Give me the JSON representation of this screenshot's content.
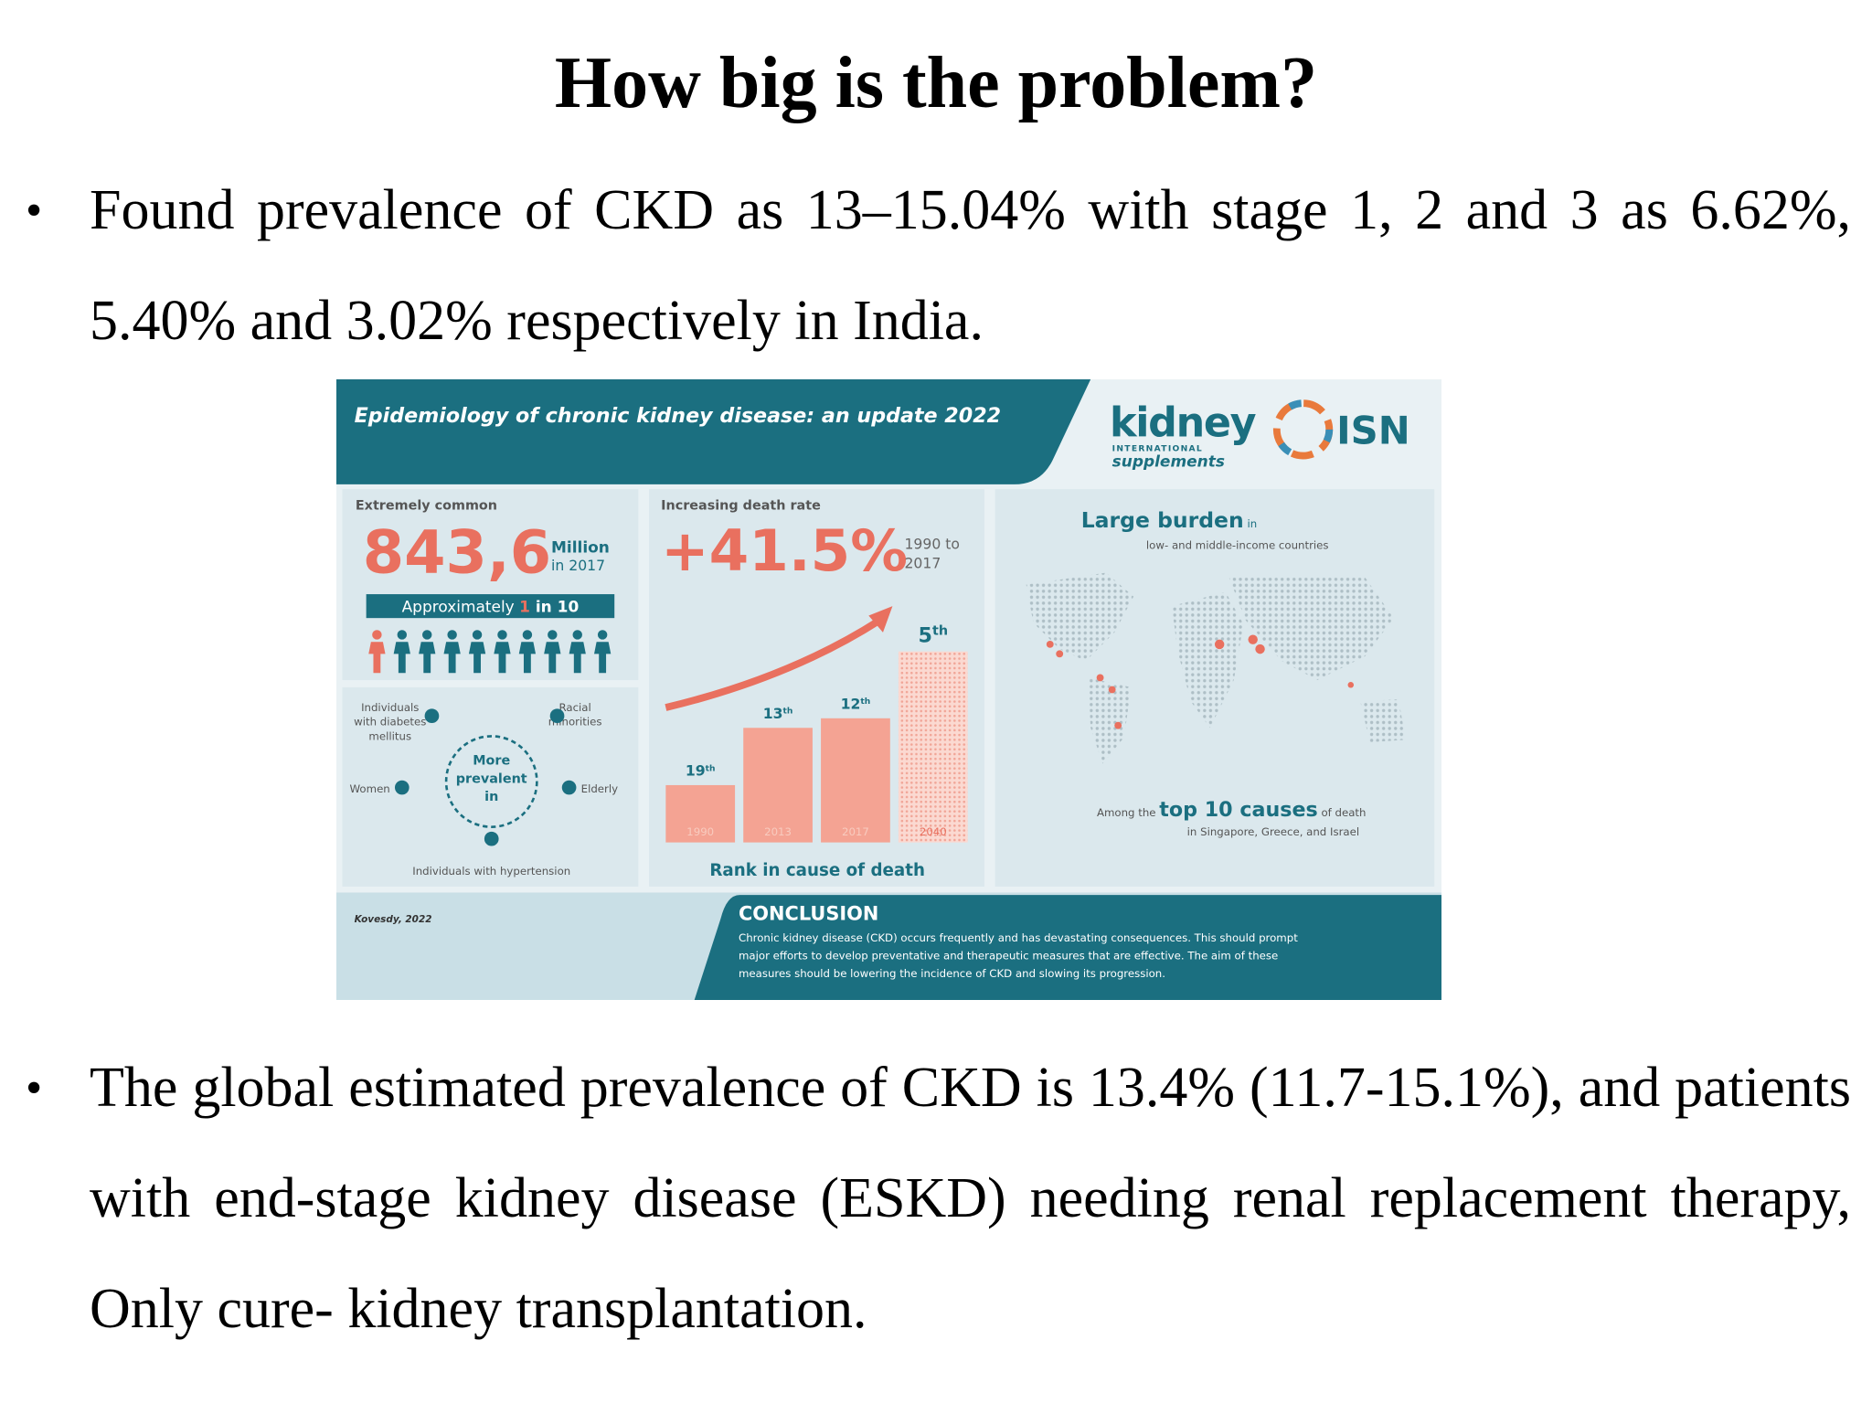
{
  "header": {
    "title": "How big is the problem?"
  },
  "bullets": [
    "Found prevalence of CKD as 13–15.04% with stage 1, 2 and 3 as 6.62%, 5.40% and 3.02% respectively in India.",
    "The global estimated prevalence of CKD is 13.4% (11.7-15.1%), and patients with end-stage kidney disease (ESKD) needing renal replacement therapy, Only cure- kidney transplantation."
  ],
  "infographic": {
    "title": "Epidemiology of chronic kidney disease: an update 2022",
    "logo": {
      "name": "kidney",
      "line2": "INTERNATIONAL",
      "line3": "supplements",
      "isn": "ISN"
    },
    "common": {
      "heading": "Extremely common",
      "number": "843,6",
      "unit": "Million",
      "year": "in 2017",
      "ratio": [
        "Approximately ",
        "1",
        " in 10"
      ]
    },
    "prevalent": {
      "center": [
        "More",
        "prevalent",
        "in"
      ],
      "groups": [
        [
          "Individuals",
          "with diabetes",
          "mellitus"
        ],
        [
          "Racial",
          "minorities"
        ],
        [
          "Women"
        ],
        [
          "Elderly"
        ],
        [
          "Individuals with hypertension"
        ]
      ]
    },
    "death": {
      "heading": "Increasing death rate",
      "number": "+41.5%",
      "period": [
        "1990 to",
        "2017"
      ],
      "caption": "Rank in cause of death",
      "bars": [
        {
          "year": "1990",
          "rank": 19,
          "suffix": "th"
        },
        {
          "year": "2013",
          "rank": 13,
          "suffix": "th"
        },
        {
          "year": "2017",
          "rank": 12,
          "suffix": "th"
        },
        {
          "year": "2040",
          "rank": 5,
          "suffix": "th"
        }
      ]
    },
    "burden": {
      "heading": [
        "Large burden",
        " in"
      ],
      "sub": "low- and middle-income countries",
      "causes": [
        "Among the ",
        "top 10 causes",
        " of death"
      ],
      "countries": "in Singapore, Greece, and Israel"
    },
    "citation": "Kovesdy, 2022",
    "conclusion": {
      "heading": "CONCLUSION",
      "lines": [
        "Chronic kidney disease (CKD) occurs frequently and has devastating consequences. This should prompt",
        "major efforts to develop preventative and therapeutic measures that are effective. The aim of these",
        "measures should be lowering the incidence of CKD and slowing its progression."
      ]
    }
  }
}
